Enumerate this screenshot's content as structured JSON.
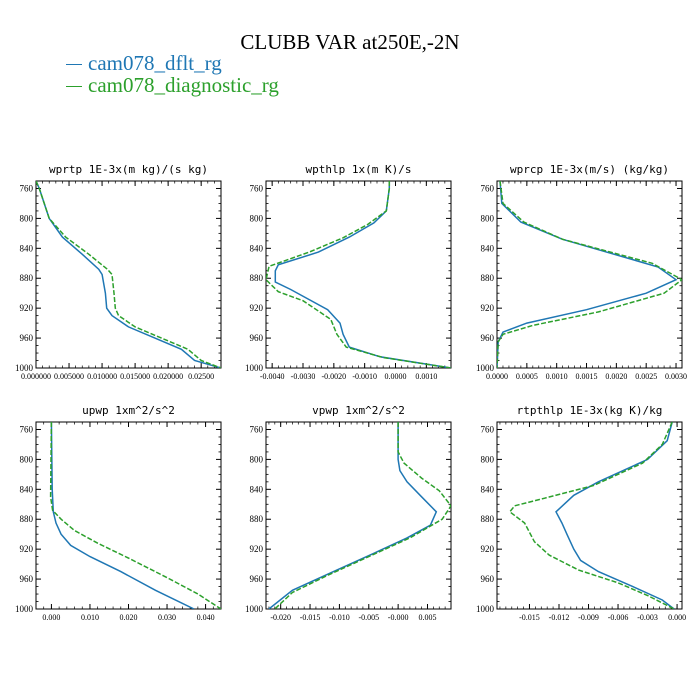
{
  "title": "CLUBB VAR at250E,-2N",
  "legend": [
    {
      "label": "cam078_dflt_rg",
      "color": "#1f77b4"
    },
    {
      "label": "cam078_diagnostic_rg",
      "color": "#2ca02c"
    }
  ],
  "chart_data": [
    {
      "type": "line",
      "title": "wprtp  1E-3x(m kg)/(s kg)",
      "xlim": [
        0,
        0.028
      ],
      "ylim": [
        1000,
        750
      ],
      "xticks": [
        0.0,
        0.005,
        0.01,
        0.015,
        0.02,
        0.025
      ],
      "xtick_labels": [
        "0.000000",
        "0.005000",
        "0.010000",
        "0.015000",
        "0.020000",
        "0.02500"
      ],
      "yticks": [
        760,
        800,
        840,
        880,
        920,
        960,
        1000
      ],
      "series": [
        {
          "name": "cam078_dflt_rg",
          "color": "#1f77b4",
          "x": [
            0.0,
            0.0005,
            0.002,
            0.004,
            0.007,
            0.0095,
            0.01,
            0.0105,
            0.0107,
            0.0115,
            0.014,
            0.018,
            0.022,
            0.024,
            0.028
          ],
          "y": [
            750,
            760,
            800,
            825,
            848,
            868,
            875,
            900,
            920,
            930,
            945,
            960,
            975,
            990,
            1000
          ]
        },
        {
          "name": "cam078_diagnostic_rg",
          "color": "#2ca02c",
          "x": [
            0.0,
            0.0005,
            0.002,
            0.0045,
            0.008,
            0.0108,
            0.0115,
            0.0118,
            0.012,
            0.0125,
            0.015,
            0.019,
            0.023,
            0.025,
            0.028
          ],
          "y": [
            750,
            760,
            800,
            825,
            848,
            868,
            875,
            900,
            920,
            930,
            945,
            960,
            975,
            990,
            1000
          ]
        }
      ]
    },
    {
      "type": "line",
      "title": "wpthlp  1x(m K)/s",
      "xlim": [
        -0.0042,
        0.0018
      ],
      "ylim": [
        1000,
        750
      ],
      "xticks": [
        -0.004,
        -0.003,
        -0.002,
        -0.001,
        0.0,
        0.001
      ],
      "xtick_labels": [
        "-0.0040",
        "-0.0030",
        "-0.0020",
        "-0.0010",
        "0.0000",
        "0.0010"
      ],
      "yticks": [
        760,
        800,
        840,
        880,
        920,
        960,
        1000
      ],
      "series": [
        {
          "name": "cam078_dflt_rg",
          "color": "#1f77b4",
          "x": [
            -0.0002,
            -0.0002,
            -0.0003,
            -0.0007,
            -0.0015,
            -0.0025,
            -0.0038,
            -0.0039,
            -0.0039,
            -0.0034,
            -0.0022,
            -0.0018,
            -0.0017,
            -0.0015,
            -0.0005,
            0.0018
          ],
          "y": [
            750,
            760,
            790,
            806,
            825,
            845,
            862,
            870,
            885,
            895,
            922,
            940,
            955,
            972,
            985,
            1000
          ]
        },
        {
          "name": "cam078_diagnostic_rg",
          "color": "#2ca02c",
          "x": [
            -0.0002,
            -0.0002,
            -0.0003,
            -0.0009,
            -0.0017,
            -0.0028,
            -0.0041,
            -0.0042,
            -0.0038,
            -0.003,
            -0.0021,
            -0.0019,
            -0.0016,
            -0.0004,
            0.0018
          ],
          "y": [
            750,
            760,
            790,
            808,
            826,
            845,
            864,
            882,
            898,
            910,
            935,
            955,
            972,
            986,
            1000
          ]
        }
      ]
    },
    {
      "type": "line",
      "title": "wprcp  1E-3x(m/s) (kg/kg)",
      "xlim": [
        0,
        0.0031
      ],
      "ylim": [
        1000,
        750
      ],
      "xticks": [
        0.0,
        0.0005,
        0.001,
        0.0015,
        0.002,
        0.0025,
        0.003
      ],
      "xtick_labels": [
        "0.0000",
        "0.0005",
        "0.0010",
        "0.0015",
        "0.0020",
        "0.0025",
        "0.0030"
      ],
      "yticks": [
        760,
        800,
        840,
        880,
        920,
        960,
        1000
      ],
      "series": [
        {
          "name": "cam078_dflt_rg",
          "color": "#1f77b4",
          "x": [
            5e-05,
            8e-05,
            0.0004,
            0.0011,
            0.0027,
            0.003,
            0.0025,
            0.0015,
            0.0005,
            0.0001,
            2e-05,
            0.0
          ],
          "y": [
            750,
            780,
            805,
            828,
            865,
            882,
            900,
            922,
            940,
            952,
            965,
            1000
          ]
        },
        {
          "name": "cam078_diagnostic_rg",
          "color": "#2ca02c",
          "x": [
            5e-05,
            0.0001,
            0.00045,
            0.0011,
            0.0026,
            0.0031,
            0.0028,
            0.0017,
            0.0006,
            0.0001,
            2e-05,
            0.0
          ],
          "y": [
            750,
            780,
            805,
            828,
            860,
            882,
            900,
            925,
            943,
            955,
            965,
            1000
          ]
        }
      ]
    },
    {
      "type": "line",
      "title": "upwp  1xm^2/s^2",
      "xlim": [
        -0.004,
        0.044
      ],
      "ylim": [
        1000,
        750
      ],
      "xticks": [
        0.0,
        0.01,
        0.02,
        0.03,
        0.04
      ],
      "xtick_labels": [
        "0.000",
        "0.010",
        "0.020",
        "0.030",
        "0.040"
      ],
      "yticks": [
        760,
        800,
        840,
        880,
        920,
        960,
        1000
      ],
      "series": [
        {
          "name": "cam078_dflt_rg",
          "color": "#1f77b4",
          "x": [
            0.0,
            0.0002,
            0.0005,
            0.0012,
            0.0025,
            0.005,
            0.01,
            0.018,
            0.027,
            0.037
          ],
          "y": [
            750,
            840,
            870,
            885,
            900,
            915,
            930,
            950,
            975,
            1000
          ]
        },
        {
          "name": "cam078_diagnostic_rg",
          "color": "#2ca02c",
          "x": [
            0.0,
            -0.0002,
            0.0003,
            0.0025,
            0.006,
            0.012,
            0.02,
            0.03,
            0.038,
            0.044
          ],
          "y": [
            750,
            850,
            868,
            880,
            895,
            912,
            932,
            958,
            980,
            1000
          ]
        }
      ]
    },
    {
      "type": "line",
      "title": "vpwp  1xm^2/s^2",
      "xlim": [
        -0.0225,
        0.009
      ],
      "ylim": [
        1000,
        750
      ],
      "xticks": [
        -0.02,
        -0.015,
        -0.01,
        -0.005,
        0.0,
        0.005
      ],
      "xtick_labels": [
        "-0.020",
        "-0.015",
        "-0.010",
        "-0.005",
        "-0.000",
        "0.005"
      ],
      "yticks": [
        760,
        800,
        840,
        880,
        920,
        960,
        1000
      ],
      "series": [
        {
          "name": "cam078_dflt_rg",
          "color": "#1f77b4",
          "x": [
            0.0,
            0.0,
            0.0003,
            0.0015,
            0.004,
            0.0065,
            0.0055,
            0.0015,
            -0.004,
            -0.011,
            -0.018,
            -0.022
          ],
          "y": [
            750,
            800,
            815,
            830,
            850,
            870,
            888,
            905,
            925,
            950,
            975,
            1000
          ]
        },
        {
          "name": "cam078_diagnostic_rg",
          "color": "#2ca02c",
          "x": [
            0.0,
            0.0,
            0.001,
            0.004,
            0.007,
            0.009,
            0.0075,
            0.002,
            -0.005,
            -0.012,
            -0.018,
            -0.021
          ],
          "y": [
            750,
            790,
            805,
            825,
            842,
            862,
            880,
            905,
            930,
            955,
            978,
            1000
          ]
        }
      ]
    },
    {
      "type": "line",
      "title": "rtpthlp  1E-3x(kg K)/kg",
      "xlim": [
        -0.0183,
        0.0005
      ],
      "ylim": [
        1000,
        750
      ],
      "xticks": [
        -0.015,
        -0.012,
        -0.009,
        -0.006,
        -0.003,
        0.0
      ],
      "xtick_labels": [
        "-0.015",
        "-0.012",
        "-0.009",
        "-0.006",
        "-0.003",
        "0.000"
      ],
      "yticks": [
        760,
        800,
        840,
        880,
        920,
        960,
        1000
      ],
      "series": [
        {
          "name": "cam078_dflt_rg",
          "color": "#1f77b4",
          "x": [
            -0.0005,
            -0.001,
            -0.003,
            -0.008,
            -0.0105,
            -0.0123,
            -0.0117,
            -0.0112,
            -0.0105,
            -0.0098,
            -0.008,
            -0.0045,
            -0.0015,
            -0.0003
          ],
          "y": [
            750,
            775,
            800,
            830,
            848,
            870,
            885,
            900,
            920,
            935,
            950,
            970,
            988,
            1000
          ]
        },
        {
          "name": "cam078_diagnostic_rg",
          "color": "#2ca02c",
          "x": [
            -0.0005,
            -0.0015,
            -0.0035,
            -0.0085,
            -0.0135,
            -0.0165,
            -0.017,
            -0.0155,
            -0.0145,
            -0.013,
            -0.01,
            -0.006,
            -0.003,
            -0.0003
          ],
          "y": [
            750,
            780,
            805,
            835,
            852,
            862,
            870,
            885,
            910,
            928,
            948,
            965,
            982,
            1000
          ]
        }
      ]
    }
  ]
}
